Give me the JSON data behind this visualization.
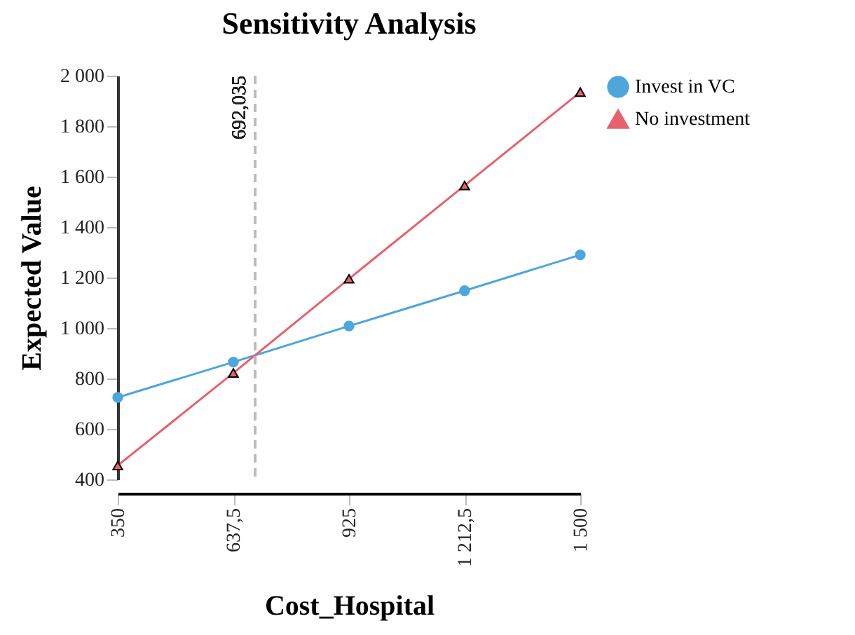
{
  "chart_data": {
    "type": "line",
    "title": "Sensitivity Analysis",
    "xlabel": "Cost_Hospital",
    "ylabel": "Expected Value",
    "x": [
      350,
      637.5,
      925,
      1212.5,
      1500
    ],
    "series": [
      {
        "name": "Invest in VC",
        "color": "#4da6dc",
        "marker": "circle",
        "values": [
          725,
          865,
          1008,
          1148,
          1290
        ]
      },
      {
        "name": "No investment",
        "color": "#e8606e",
        "marker": "triangle",
        "values": [
          455,
          822,
          1195,
          1565,
          1935
        ]
      }
    ],
    "xlim": [
      350,
      1500
    ],
    "xticks": [
      {
        "value": 350,
        "label": "350"
      },
      {
        "value": 637.5,
        "label": "637,5"
      },
      {
        "value": 925,
        "label": "925"
      },
      {
        "value": 1212.5,
        "label": "1 212,5"
      },
      {
        "value": 1500,
        "label": "1 500"
      }
    ],
    "ylim": [
      400,
      2000
    ],
    "yticks": [
      {
        "value": 400,
        "label": "400"
      },
      {
        "value": 600,
        "label": "600"
      },
      {
        "value": 800,
        "label": "800"
      },
      {
        "value": 1000,
        "label": "1 000"
      },
      {
        "value": 1200,
        "label": "1 200"
      },
      {
        "value": 1400,
        "label": "1 400"
      },
      {
        "value": 1600,
        "label": "1 600"
      },
      {
        "value": 1800,
        "label": "1 800"
      },
      {
        "value": 2000,
        "label": "2 000"
      }
    ],
    "ref_lines": [
      {
        "axis": "x",
        "value": 692.035,
        "label": "692,035",
        "color": "#bbbbbb",
        "line_style": "dashed"
      }
    ],
    "grid": false,
    "legend": "right",
    "line_style": "solid"
  }
}
